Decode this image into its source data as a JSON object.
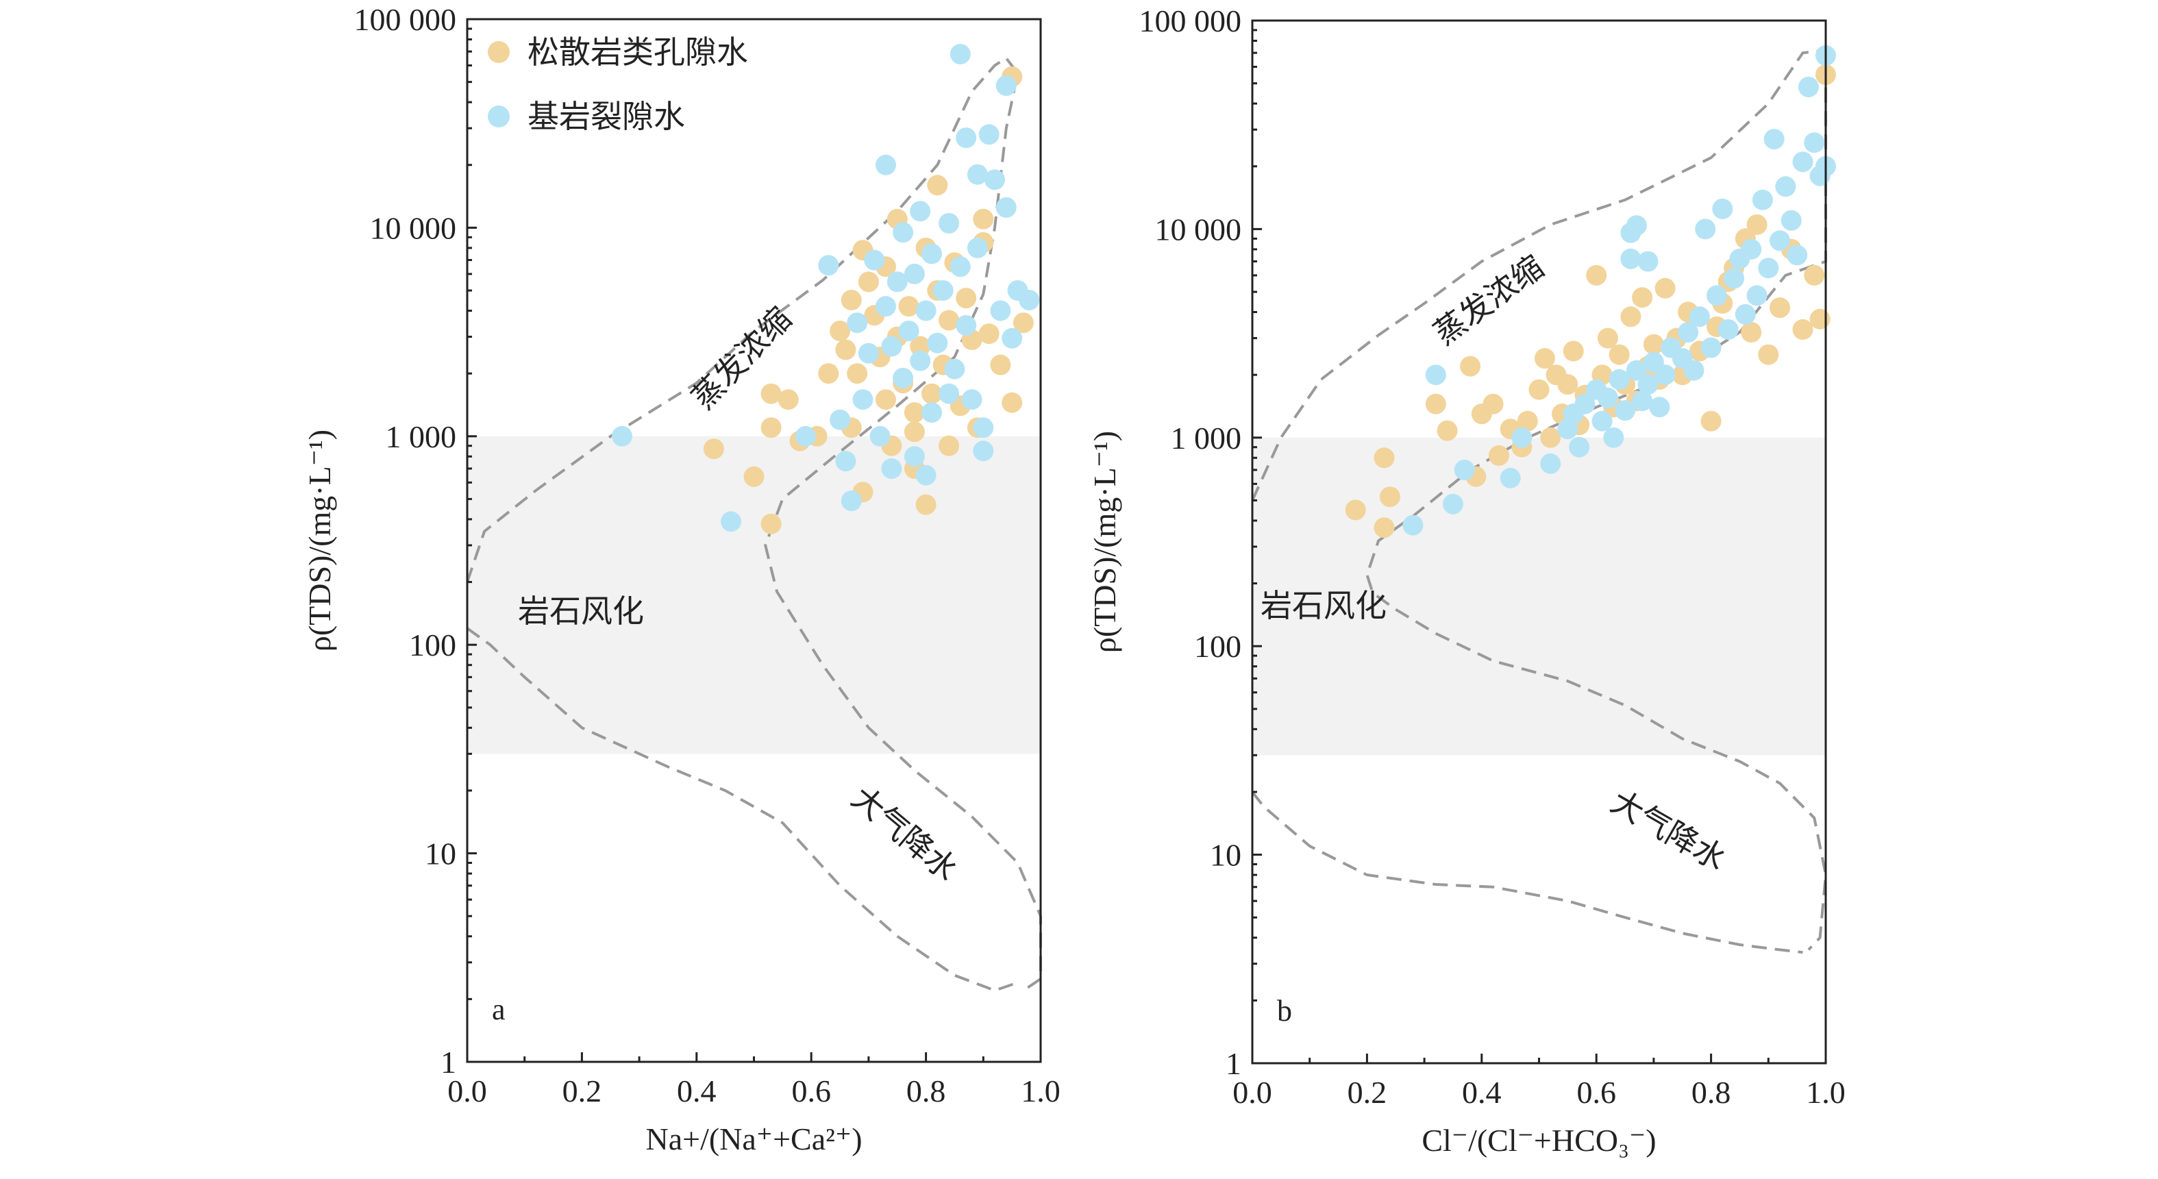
{
  "colors": {
    "unconsolidated": "#f2d39a",
    "bedrock": "#b5e3f6",
    "band": "#f2f2f2",
    "envelope": "#999999"
  },
  "legend": {
    "unconsolidated": "松散岩类孔隙水",
    "bedrock": "基岩裂隙水"
  },
  "zones": {
    "evaporation": "蒸发浓缩",
    "rock": "岩石风化",
    "precip": "大气降水"
  },
  "chart_data": [
    {
      "type": "scatter",
      "panel": "a",
      "xlabel": "Na+/(Na⁺+Ca²⁺)",
      "ylabel": "ρ(TDS)/(mg·L⁻¹)",
      "xlim": [
        0,
        1
      ],
      "ylim": [
        1,
        100000
      ],
      "yscale": "log",
      "xticks": [
        "0.0",
        "0.2",
        "0.4",
        "0.6",
        "0.8",
        "1.0"
      ],
      "yticks": [
        "1",
        "10",
        "100",
        "1 000",
        "10 000",
        "100 000"
      ],
      "shaded_band_y": [
        30,
        1000
      ],
      "series": [
        {
          "name": "松散岩类孔隙水",
          "points": [
            [
              0.43,
              870
            ],
            [
              0.5,
              640
            ],
            [
              0.53,
              380
            ],
            [
              0.53,
              1600
            ],
            [
              0.53,
              1100
            ],
            [
              0.56,
              1500
            ],
            [
              0.58,
              950
            ],
            [
              0.61,
              1000
            ],
            [
              0.63,
              2000
            ],
            [
              0.65,
              3200
            ],
            [
              0.66,
              2600
            ],
            [
              0.67,
              4500
            ],
            [
              0.67,
              1100
            ],
            [
              0.69,
              7800
            ],
            [
              0.69,
              540
            ],
            [
              0.7,
              5500
            ],
            [
              0.71,
              3800
            ],
            [
              0.72,
              2400
            ],
            [
              0.73,
              1500
            ],
            [
              0.73,
              6500
            ],
            [
              0.74,
              900
            ],
            [
              0.75,
              3000
            ],
            [
              0.75,
              11000
            ],
            [
              0.76,
              1800
            ],
            [
              0.77,
              4200
            ],
            [
              0.78,
              1300
            ],
            [
              0.78,
              700
            ],
            [
              0.79,
              2700
            ],
            [
              0.8,
              470
            ],
            [
              0.8,
              8000
            ],
            [
              0.81,
              1600
            ],
            [
              0.82,
              16000
            ],
            [
              0.82,
              5000
            ],
            [
              0.83,
              2200
            ],
            [
              0.84,
              3600
            ],
            [
              0.84,
              900
            ],
            [
              0.85,
              6800
            ],
            [
              0.86,
              1400
            ],
            [
              0.87,
              4600
            ],
            [
              0.88,
              2900
            ],
            [
              0.89,
              1100
            ],
            [
              0.9,
              8500
            ],
            [
              0.91,
              3100
            ],
            [
              0.93,
              2200
            ],
            [
              0.95,
              1450
            ],
            [
              0.95,
              53000
            ],
            [
              0.97,
              3500
            ],
            [
              0.9,
              11000
            ],
            [
              0.78,
              1050
            ],
            [
              0.68,
              2000
            ]
          ]
        },
        {
          "name": "基岩裂隙水",
          "points": [
            [
              0.27,
              1000
            ],
            [
              0.46,
              390
            ],
            [
              0.59,
              1000
            ],
            [
              0.63,
              6600
            ],
            [
              0.65,
              1200
            ],
            [
              0.66,
              760
            ],
            [
              0.67,
              490
            ],
            [
              0.68,
              3500
            ],
            [
              0.69,
              1500
            ],
            [
              0.7,
              2500
            ],
            [
              0.71,
              7000
            ],
            [
              0.72,
              1000
            ],
            [
              0.73,
              4200
            ],
            [
              0.73,
              20000
            ],
            [
              0.74,
              700
            ],
            [
              0.74,
              2700
            ],
            [
              0.75,
              5500
            ],
            [
              0.76,
              1900
            ],
            [
              0.76,
              9500
            ],
            [
              0.77,
              3200
            ],
            [
              0.78,
              800
            ],
            [
              0.78,
              6000
            ],
            [
              0.79,
              2300
            ],
            [
              0.79,
              12000
            ],
            [
              0.8,
              650
            ],
            [
              0.8,
              4000
            ],
            [
              0.81,
              1300
            ],
            [
              0.81,
              7500
            ],
            [
              0.82,
              2800
            ],
            [
              0.83,
              5000
            ],
            [
              0.84,
              1600
            ],
            [
              0.84,
              10500
            ],
            [
              0.85,
              2100
            ],
            [
              0.86,
              68000
            ],
            [
              0.86,
              6500
            ],
            [
              0.87,
              27000
            ],
            [
              0.87,
              3400
            ],
            [
              0.88,
              1500
            ],
            [
              0.89,
              18000
            ],
            [
              0.89,
              8000
            ],
            [
              0.9,
              1100
            ],
            [
              0.9,
              850
            ],
            [
              0.91,
              28000
            ],
            [
              0.92,
              17000
            ],
            [
              0.93,
              4000
            ],
            [
              0.94,
              48000
            ],
            [
              0.94,
              12500
            ],
            [
              0.95,
              2950
            ],
            [
              0.96,
              5000
            ],
            [
              0.98,
              4500
            ]
          ]
        }
      ]
    },
    {
      "type": "scatter",
      "panel": "b",
      "xlabel": "Cl⁻/(Cl⁻+HCO₃⁻)",
      "ylabel": "ρ(TDS)/(mg·L⁻¹)",
      "xlim": [
        0,
        1
      ],
      "ylim": [
        1,
        100000
      ],
      "yscale": "log",
      "xticks": [
        "0.0",
        "0.2",
        "0.4",
        "0.6",
        "0.8",
        "1.0"
      ],
      "yticks": [
        "1",
        "10",
        "100",
        "1 000",
        "10 000",
        "100 000"
      ],
      "shaded_band_y": [
        30,
        1000
      ],
      "series": [
        {
          "name": "松散岩类孔隙水",
          "points": [
            [
              0.18,
              450
            ],
            [
              0.23,
              800
            ],
            [
              0.23,
              370
            ],
            [
              0.24,
              520
            ],
            [
              0.32,
              1450
            ],
            [
              0.34,
              1080
            ],
            [
              0.38,
              2200
            ],
            [
              0.39,
              650
            ],
            [
              0.4,
              1300
            ],
            [
              0.42,
              1450
            ],
            [
              0.43,
              820
            ],
            [
              0.45,
              1100
            ],
            [
              0.47,
              900
            ],
            [
              0.48,
              1200
            ],
            [
              0.5,
              1700
            ],
            [
              0.51,
              2400
            ],
            [
              0.52,
              1000
            ],
            [
              0.53,
              2000
            ],
            [
              0.54,
              1300
            ],
            [
              0.55,
              1800
            ],
            [
              0.56,
              2600
            ],
            [
              0.57,
              1150
            ],
            [
              0.58,
              1600
            ],
            [
              0.6,
              6000
            ],
            [
              0.61,
              2000
            ],
            [
              0.62,
              3000
            ],
            [
              0.63,
              1400
            ],
            [
              0.64,
              2500
            ],
            [
              0.65,
              1800
            ],
            [
              0.66,
              3800
            ],
            [
              0.67,
              1500
            ],
            [
              0.68,
              4700
            ],
            [
              0.69,
              2200
            ],
            [
              0.7,
              2800
            ],
            [
              0.71,
              1900
            ],
            [
              0.72,
              5200
            ],
            [
              0.74,
              3000
            ],
            [
              0.75,
              2000
            ],
            [
              0.76,
              4000
            ],
            [
              0.78,
              2600
            ],
            [
              0.8,
              1200
            ],
            [
              0.81,
              3400
            ],
            [
              0.82,
              4400
            ],
            [
              0.83,
              5600
            ],
            [
              0.84,
              6500
            ],
            [
              0.86,
              9000
            ],
            [
              0.87,
              3200
            ],
            [
              0.88,
              10500
            ],
            [
              0.9,
              2500
            ],
            [
              0.92,
              4200
            ],
            [
              0.94,
              8000
            ],
            [
              0.96,
              3300
            ],
            [
              0.98,
              6000
            ],
            [
              0.99,
              3700
            ],
            [
              1.0,
              55000
            ]
          ]
        },
        {
          "name": "基岩裂隙水",
          "points": [
            [
              0.28,
              380
            ],
            [
              0.32,
              2000
            ],
            [
              0.35,
              480
            ],
            [
              0.37,
              700
            ],
            [
              0.45,
              640
            ],
            [
              0.47,
              1000
            ],
            [
              0.52,
              750
            ],
            [
              0.55,
              1100
            ],
            [
              0.56,
              1300
            ],
            [
              0.57,
              900
            ],
            [
              0.58,
              1450
            ],
            [
              0.6,
              1700
            ],
            [
              0.61,
              1200
            ],
            [
              0.62,
              1550
            ],
            [
              0.63,
              1000
            ],
            [
              0.64,
              1900
            ],
            [
              0.65,
              1350
            ],
            [
              0.66,
              7200
            ],
            [
              0.66,
              9600
            ],
            [
              0.67,
              2100
            ],
            [
              0.67,
              10400
            ],
            [
              0.68,
              1500
            ],
            [
              0.69,
              1800
            ],
            [
              0.69,
              7000
            ],
            [
              0.7,
              2300
            ],
            [
              0.71,
              1400
            ],
            [
              0.72,
              2000
            ],
            [
              0.73,
              2700
            ],
            [
              0.75,
              2400
            ],
            [
              0.76,
              3200
            ],
            [
              0.77,
              2100
            ],
            [
              0.78,
              3800
            ],
            [
              0.79,
              10000
            ],
            [
              0.8,
              2700
            ],
            [
              0.81,
              4800
            ],
            [
              0.82,
              12500
            ],
            [
              0.83,
              3300
            ],
            [
              0.84,
              5800
            ],
            [
              0.85,
              7200
            ],
            [
              0.86,
              3900
            ],
            [
              0.87,
              8000
            ],
            [
              0.88,
              4800
            ],
            [
              0.89,
              13800
            ],
            [
              0.9,
              6500
            ],
            [
              0.91,
              27000
            ],
            [
              0.92,
              8800
            ],
            [
              0.93,
              16000
            ],
            [
              0.94,
              11000
            ],
            [
              0.95,
              7500
            ],
            [
              0.96,
              21000
            ],
            [
              0.97,
              48000
            ],
            [
              0.98,
              26000
            ],
            [
              0.99,
              18000
            ],
            [
              1.0,
              68000
            ],
            [
              1.0,
              20000
            ]
          ]
        }
      ]
    }
  ]
}
